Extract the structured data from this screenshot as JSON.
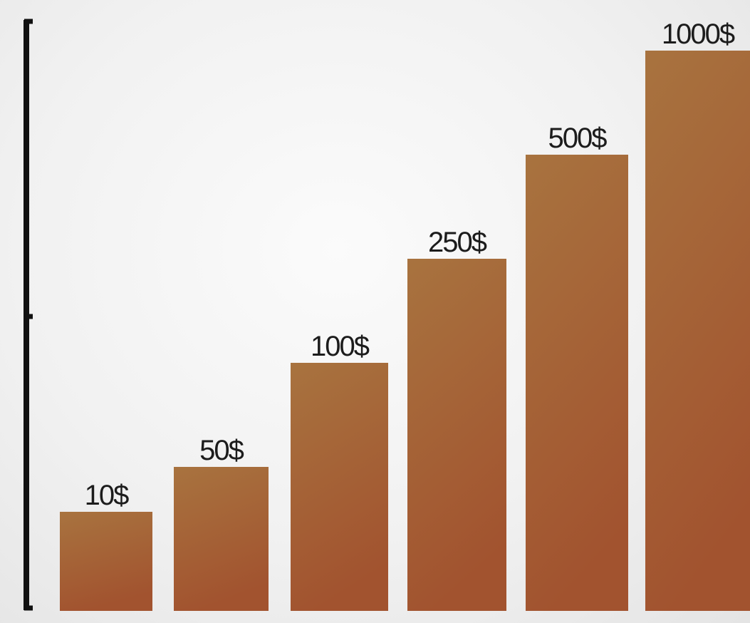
{
  "chart_data": {
    "type": "bar",
    "categories": [
      "10$",
      "50$",
      "100$",
      "250$",
      "500$",
      "1000$"
    ],
    "values": [
      10,
      50,
      100,
      250,
      500,
      1000
    ],
    "data_labels": [
      "10$",
      "50$",
      "100$",
      "250$",
      "500$",
      "1000$"
    ],
    "title": "",
    "xlabel": "",
    "ylabel": "",
    "scale": "ordinal-stepped",
    "grid": false,
    "legend": "none",
    "colors": {
      "bar_top": "#a8733f",
      "bar_bottom": "#a2532f",
      "axis": "#111111",
      "label": "#1c1c1c"
    }
  }
}
